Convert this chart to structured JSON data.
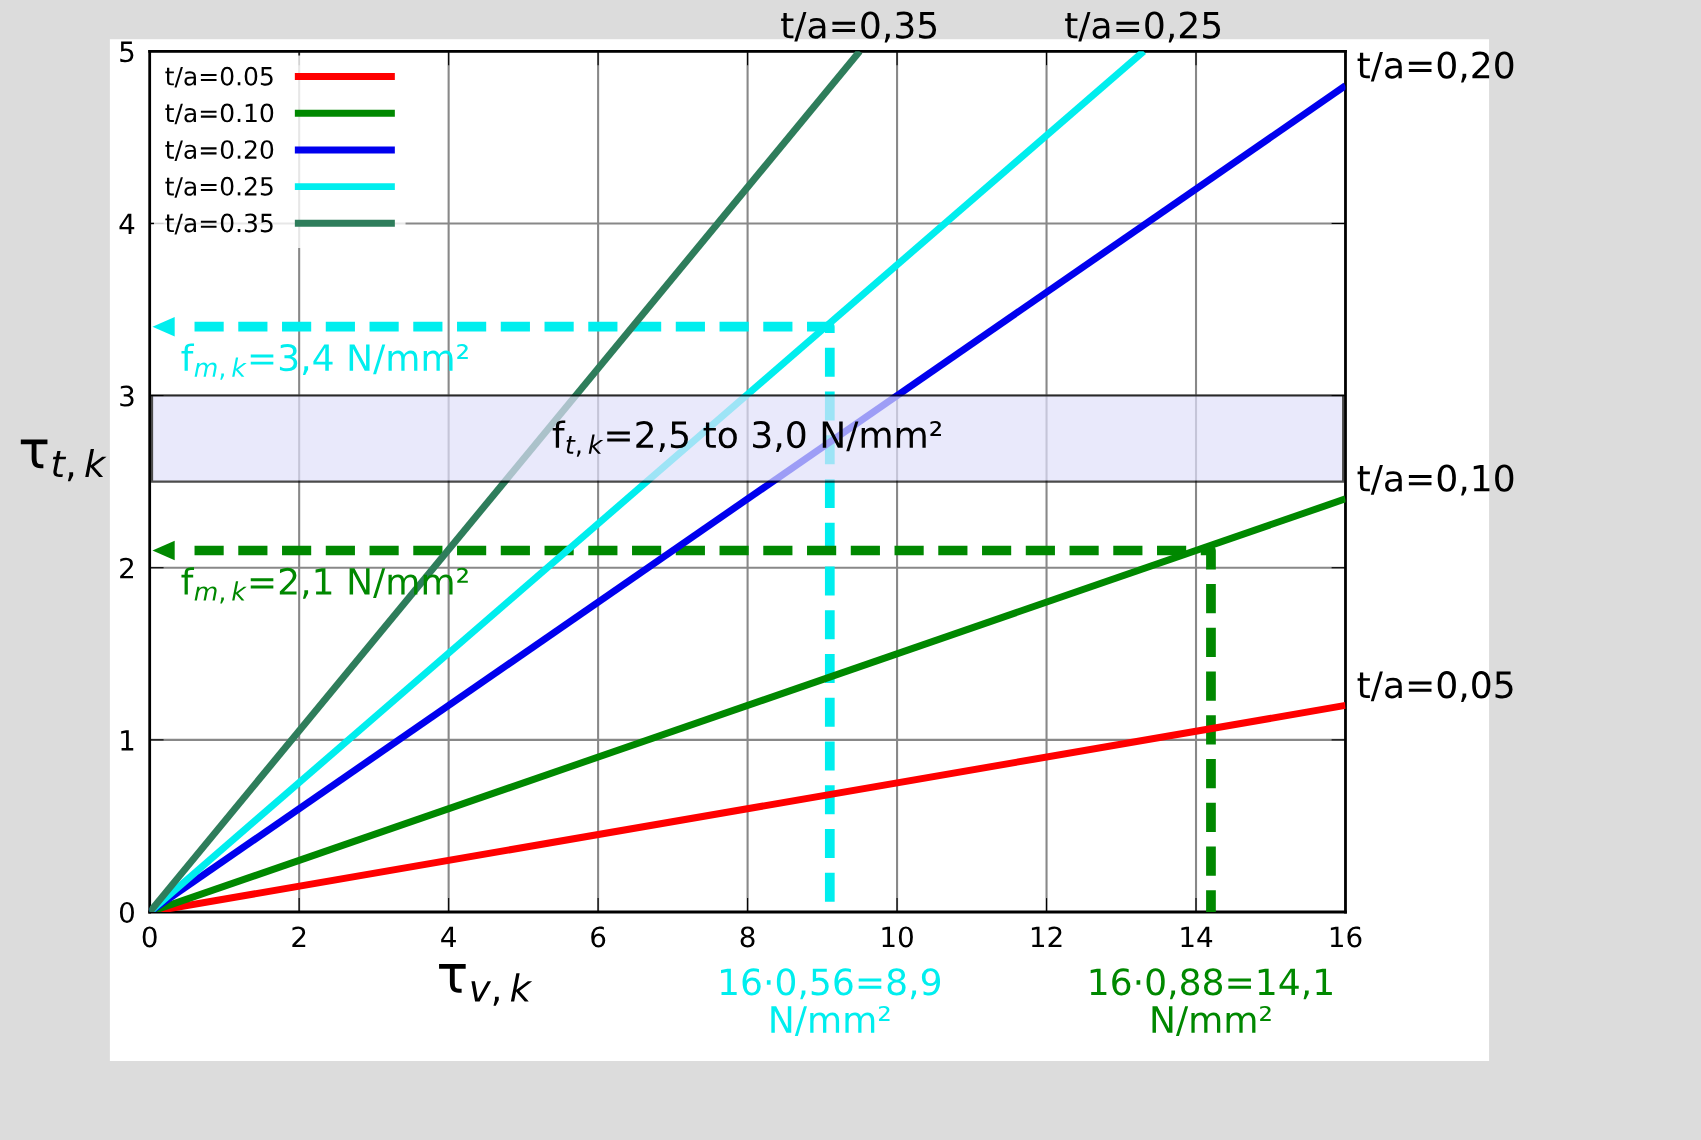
{
  "chart_data": {
    "type": "line",
    "xlabel": "τ$_{v,k}$",
    "ylabel": "τ$_{t,k}$",
    "xlim": [
      0,
      16
    ],
    "ylim": [
      0,
      5
    ],
    "xticks": [
      0,
      2,
      4,
      6,
      8,
      10,
      12,
      14,
      16
    ],
    "yticks": [
      0,
      1,
      2,
      3,
      4,
      5
    ],
    "grid": true,
    "legend": "top left",
    "line_style": "solid",
    "marker": "none",
    "series": [
      {
        "name": "t/a=0.05",
        "color": "#ff0000",
        "x": [
          0,
          16
        ],
        "values": [
          0,
          1.2
        ]
      },
      {
        "name": "t/a=0.10",
        "color": "#008800",
        "x": [
          0,
          16
        ],
        "values": [
          0,
          2.4
        ]
      },
      {
        "name": "t/a=0.20",
        "color": "#0000ee",
        "x": [
          0,
          16
        ],
        "values": [
          0,
          4.8
        ]
      },
      {
        "name": "t/a=0.25",
        "color": "#00eeee",
        "x": [
          0,
          13.3
        ],
        "values": [
          0,
          5
        ]
      },
      {
        "name": "t/a=0.35",
        "color": "#2e7d5b",
        "x": [
          0,
          9.5
        ],
        "values": [
          0,
          5
        ]
      },
      {
        "color": "#00eeee",
        "line_style": "dashed",
        "x": [
          0.6,
          9.1,
          9.1
        ],
        "values": [
          3.4,
          3.4,
          0
        ]
      },
      {
        "color": "#008800",
        "line_style": "dashed",
        "x": [
          0.6,
          14.2,
          14.2
        ],
        "values": [
          2.1,
          2.1,
          0
        ]
      }
    ],
    "bands": [
      {
        "axis": "y",
        "from": 2.5,
        "to": 3.0,
        "label": "f$_{t,k}$=2,5 to 3,0 N/mm²",
        "color": "#e0e0fa"
      }
    ],
    "annotations": [
      {
        "text": "t/a=0,35",
        "x": 9.5,
        "y": 5
      },
      {
        "text": "t/a=0,25",
        "x": 13.3,
        "y": 5
      },
      {
        "text": "t/a=0,20",
        "x": 16,
        "y": 4.8
      },
      {
        "text": "t/a=0,10",
        "x": 16,
        "y": 2.4
      },
      {
        "text": "t/a=0,05",
        "x": 16,
        "y": 1.2
      },
      {
        "text": "f$_{m,k}$=3,4 N/mm²",
        "x": 0.6,
        "y": 3.4
      },
      {
        "text": "f$_{m,k}$=2,1 N/mm²",
        "x": 0.6,
        "y": 2.1
      },
      {
        "text": "16·0,56=8,9\nN/mm²",
        "x": 9.1,
        "y": 0
      },
      {
        "text": "16·0,88=14,1\nN/mm²",
        "x": 14.2,
        "y": 0
      }
    ]
  }
}
